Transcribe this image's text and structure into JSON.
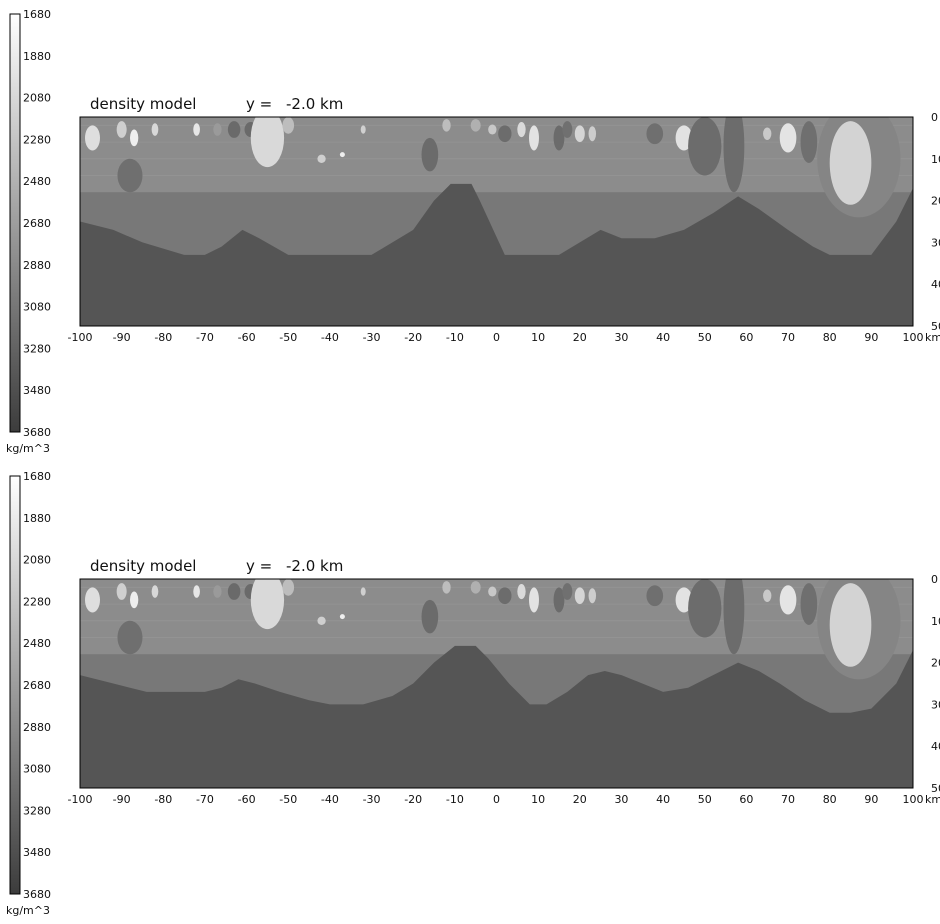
{
  "chart_data": [
    {
      "type": "heatmap",
      "title": "density model",
      "subtitle_label": "y =",
      "subtitle_value": "-2.0 km",
      "x_unit": "km",
      "xlim": [
        -100,
        100
      ],
      "x_ticks": [
        "-100",
        "-90",
        "-80",
        "-70",
        "-60",
        "-50",
        "-40",
        "-30",
        "-20",
        "-10",
        "0",
        "10",
        "20",
        "30",
        "40",
        "50",
        "60",
        "70",
        "80",
        "90",
        "100"
      ],
      "depth_ticks": [
        "0",
        "10",
        "20",
        "30",
        "40",
        "50"
      ],
      "ylim": [
        0,
        50
      ],
      "colorbar": {
        "unit": "kg/m^3",
        "ticks": [
          "1680",
          "1880",
          "2080",
          "2280",
          "2480",
          "2680",
          "2880",
          "3080",
          "3280",
          "3480",
          "3680"
        ],
        "range": [
          1680,
          3680
        ]
      },
      "layer_boundary_depth_km": 18,
      "moho_profile": [
        [
          -100,
          25
        ],
        [
          -92,
          27
        ],
        [
          -85,
          30
        ],
        [
          -75,
          33
        ],
        [
          -70,
          33
        ],
        [
          -66,
          31
        ],
        [
          -61,
          27
        ],
        [
          -57,
          29
        ],
        [
          -50,
          33
        ],
        [
          -40,
          33
        ],
        [
          -30,
          33
        ],
        [
          -20,
          27
        ],
        [
          -15,
          20
        ],
        [
          -11,
          16
        ],
        [
          -6,
          16
        ],
        [
          -4,
          20
        ],
        [
          2,
          33
        ],
        [
          10,
          33
        ],
        [
          15,
          33
        ],
        [
          20,
          30
        ],
        [
          25,
          27
        ],
        [
          30,
          29
        ],
        [
          38,
          29
        ],
        [
          45,
          27
        ],
        [
          52,
          23
        ],
        [
          58,
          19
        ],
        [
          63,
          22
        ],
        [
          70,
          27
        ],
        [
          76,
          31
        ],
        [
          80,
          33
        ],
        [
          85,
          33
        ],
        [
          90,
          33
        ],
        [
          96,
          25
        ],
        [
          100,
          17
        ]
      ],
      "colors": {
        "upper_crust": "#8c8c8c",
        "lower_crust": "#787878",
        "mantle": "#555555",
        "frame": "#000000"
      }
    },
    {
      "type": "heatmap",
      "title": "density model",
      "subtitle_label": "y =",
      "subtitle_value": "-2.0 km",
      "x_unit": "km",
      "xlim": [
        -100,
        100
      ],
      "x_ticks": [
        "-100",
        "-90",
        "-80",
        "-70",
        "-60",
        "-50",
        "-40",
        "-30",
        "-20",
        "-10",
        "0",
        "10",
        "20",
        "30",
        "40",
        "50",
        "60",
        "70",
        "80",
        "90",
        "100"
      ],
      "depth_ticks": [
        "0",
        "10",
        "20",
        "30",
        "40",
        "50"
      ],
      "ylim": [
        0,
        50
      ],
      "colorbar": {
        "unit": "kg/m^3",
        "ticks": [
          "1680",
          "1880",
          "2080",
          "2280",
          "2480",
          "2680",
          "2880",
          "3080",
          "3280",
          "3480",
          "3680"
        ],
        "range": [
          1680,
          3680
        ]
      },
      "layer_boundary_depth_km": 18,
      "moho_profile": [
        [
          -100,
          23
        ],
        [
          -92,
          25
        ],
        [
          -84,
          27
        ],
        [
          -75,
          27
        ],
        [
          -70,
          27
        ],
        [
          -66,
          26
        ],
        [
          -62,
          24
        ],
        [
          -58,
          25
        ],
        [
          -52,
          27
        ],
        [
          -45,
          29
        ],
        [
          -40,
          30
        ],
        [
          -32,
          30
        ],
        [
          -25,
          28
        ],
        [
          -20,
          25
        ],
        [
          -15,
          20
        ],
        [
          -10,
          16
        ],
        [
          -5,
          16
        ],
        [
          -2,
          19
        ],
        [
          3,
          25
        ],
        [
          8,
          30
        ],
        [
          12,
          30
        ],
        [
          17,
          27
        ],
        [
          22,
          23
        ],
        [
          26,
          22
        ],
        [
          30,
          23
        ],
        [
          35,
          25
        ],
        [
          40,
          27
        ],
        [
          46,
          26
        ],
        [
          52,
          23
        ],
        [
          58,
          20
        ],
        [
          63,
          22
        ],
        [
          68,
          25
        ],
        [
          74,
          29
        ],
        [
          80,
          32
        ],
        [
          85,
          32
        ],
        [
          90,
          31
        ],
        [
          96,
          25
        ],
        [
          100,
          17
        ]
      ],
      "colors": {
        "upper_crust": "#8c8c8c",
        "lower_crust": "#787878",
        "mantle": "#555555",
        "frame": "#000000"
      }
    }
  ]
}
